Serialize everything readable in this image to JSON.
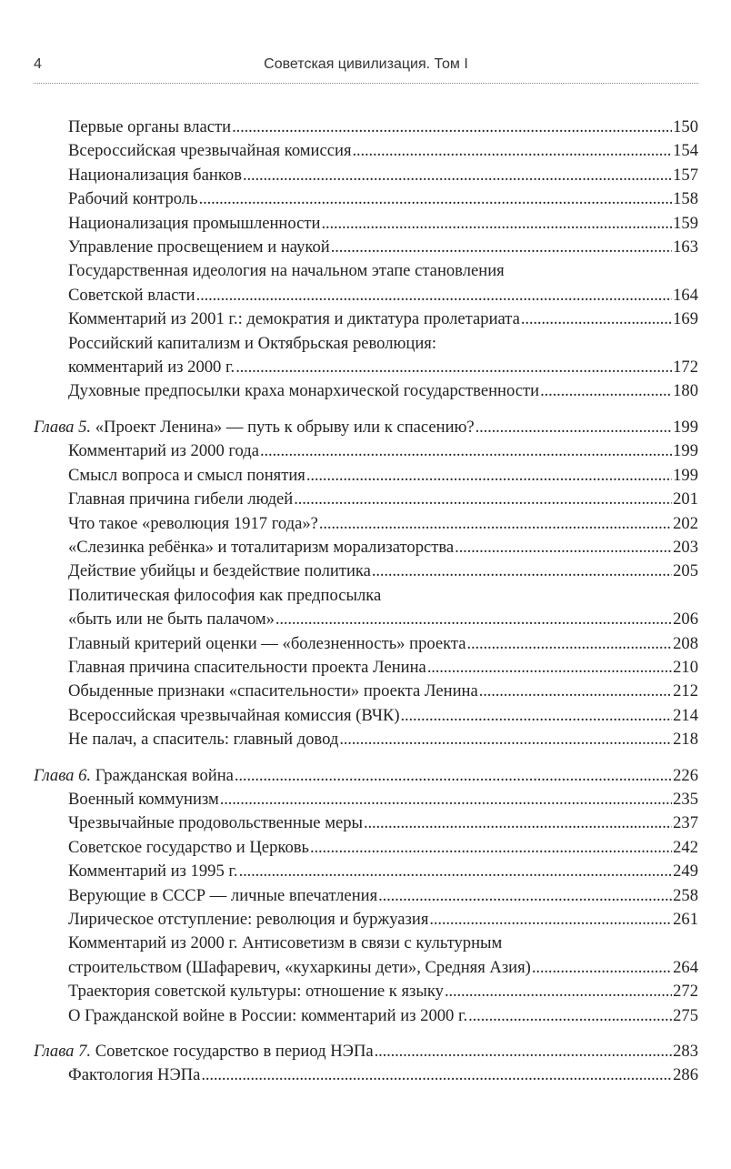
{
  "header": {
    "page_number": "4",
    "title": "Советская цивилизация. Том I"
  },
  "entries": [
    {
      "level": "sub",
      "lines": [
        "Первые органы власти"
      ],
      "page": "150"
    },
    {
      "level": "sub",
      "lines": [
        "Всероссийская чрезвычайная комиссия"
      ],
      "page": "154"
    },
    {
      "level": "sub",
      "lines": [
        "Национализация банков"
      ],
      "page": "157"
    },
    {
      "level": "sub",
      "lines": [
        "Рабочий контроль"
      ],
      "page": "158"
    },
    {
      "level": "sub",
      "lines": [
        "Национализация промышленности"
      ],
      "page": "159"
    },
    {
      "level": "sub",
      "lines": [
        "Управление просвещением и наукой"
      ],
      "page": "163"
    },
    {
      "level": "sub",
      "lines": [
        "Государственная идеология на начальном этапе становления",
        "Советской власти"
      ],
      "page": "164"
    },
    {
      "level": "sub",
      "lines": [
        "Комментарий из 2001 г.: демократия и диктатура пролетариата"
      ],
      "page": "169"
    },
    {
      "level": "sub",
      "lines": [
        "Российский капитализм и Октябрьская революция:",
        "комментарий из 2000 г."
      ],
      "page": "172"
    },
    {
      "level": "sub",
      "lines": [
        "Духовные предпосылки краха монархической государственности"
      ],
      "page": "180"
    },
    {
      "level": "chap",
      "prefix": "Глава 5.",
      "lines": [
        "«Проект Ленина» — путь к обрыву или к спасению?"
      ],
      "page": "199"
    },
    {
      "level": "sub",
      "lines": [
        "Комментарий из 2000 года"
      ],
      "page": "199"
    },
    {
      "level": "sub",
      "lines": [
        "Смысл вопроса и смысл понятия"
      ],
      "page": "199"
    },
    {
      "level": "sub",
      "lines": [
        "Главная причина гибели людей"
      ],
      "page": "201"
    },
    {
      "level": "sub",
      "lines": [
        "Что такое «революция 1917 года»?"
      ],
      "page": "202"
    },
    {
      "level": "sub",
      "lines": [
        "«Слезинка ребёнка» и тоталитаризм морализаторства"
      ],
      "page": "203"
    },
    {
      "level": "sub",
      "lines": [
        "Действие убийцы и бездействие политика"
      ],
      "page": "205"
    },
    {
      "level": "sub",
      "lines": [
        "Политическая философия как предпосылка",
        "«быть или не быть палачом»"
      ],
      "page": "206"
    },
    {
      "level": "sub",
      "lines": [
        "Главный критерий оценки — «болезненность» проекта"
      ],
      "page": "208"
    },
    {
      "level": "sub",
      "lines": [
        "Главная причина спасительности проекта Ленина"
      ],
      "page": "210"
    },
    {
      "level": "sub",
      "lines": [
        "Обыденные признаки «спасительности» проекта Ленина"
      ],
      "page": "212"
    },
    {
      "level": "sub",
      "lines": [
        "Всероссийская чрезвычайная комиссия (ВЧК)"
      ],
      "page": "214"
    },
    {
      "level": "sub",
      "lines": [
        "Не палач, а спаситель: главный довод"
      ],
      "page": "218"
    },
    {
      "level": "chap",
      "prefix": "Глава 6.",
      "lines": [
        "Гражданская война"
      ],
      "page": "226"
    },
    {
      "level": "sub",
      "lines": [
        "Военный коммунизм"
      ],
      "page": "235"
    },
    {
      "level": "sub",
      "lines": [
        "Чрезвычайные продовольственные меры"
      ],
      "page": "237"
    },
    {
      "level": "sub",
      "lines": [
        "Советское государство и Церковь"
      ],
      "page": "242"
    },
    {
      "level": "sub",
      "lines": [
        "Комментарий из 1995 г."
      ],
      "page": "249"
    },
    {
      "level": "sub",
      "lines": [
        "Верующие в СССР — личные впечатления"
      ],
      "page": "258"
    },
    {
      "level": "sub",
      "lines": [
        "Лирическое отступление: революция и буржуазия"
      ],
      "page": "261"
    },
    {
      "level": "sub",
      "lines": [
        "Комментарий из 2000 г. Антисоветизм в связи с культурным",
        "строительством (Шафаревич, «кухаркины дети», Средняя Азия)"
      ],
      "page": "264"
    },
    {
      "level": "sub",
      "lines": [
        "Траектория советской культуры: отношение к языку"
      ],
      "page": "272"
    },
    {
      "level": "sub",
      "lines": [
        "О Гражданской войне в России: комментарий из 2000 г."
      ],
      "page": "275"
    },
    {
      "level": "chap",
      "prefix": "Глава 7.",
      "lines": [
        "Советское государство в период НЭПа"
      ],
      "page": "283"
    },
    {
      "level": "sub",
      "lines": [
        "Фактология НЭПа"
      ],
      "page": "286"
    }
  ]
}
